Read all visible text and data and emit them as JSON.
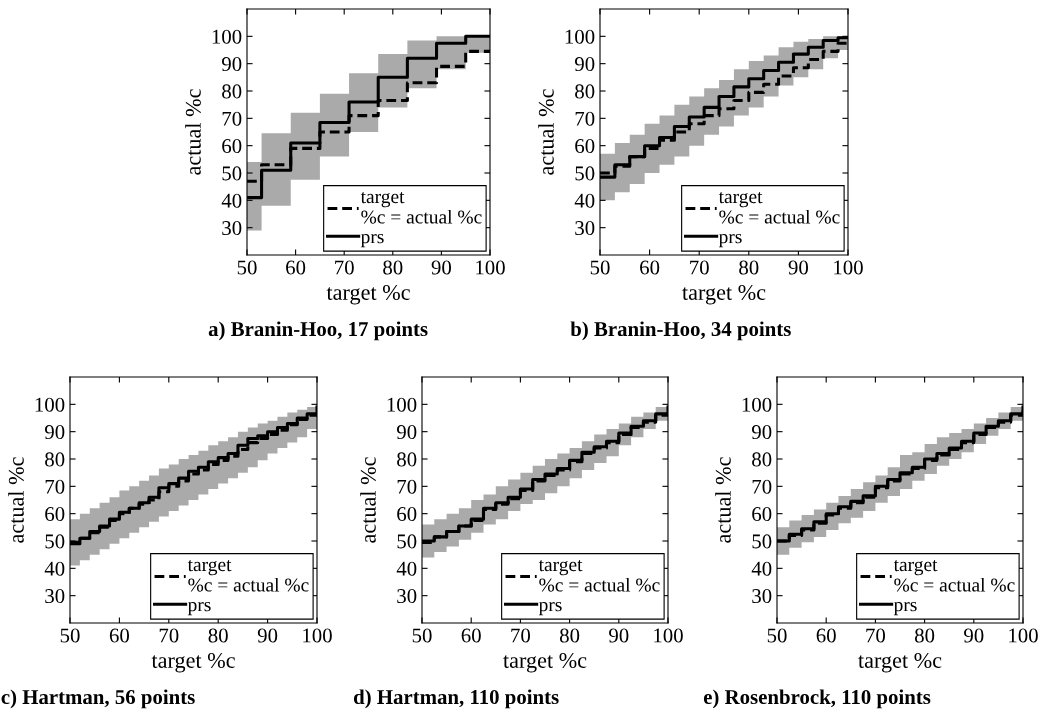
{
  "chart_data": [
    {
      "type": "step",
      "title": "a) Branin-Hoo, 17 points",
      "xlabel": "target %c",
      "ylabel": "actual %c",
      "xlim": [
        50,
        100
      ],
      "ylim": [
        20,
        110
      ],
      "xticks": [
        50,
        60,
        70,
        80,
        90,
        100
      ],
      "yticks": [
        30,
        40,
        50,
        60,
        70,
        80,
        90,
        100
      ],
      "legend": "bottom right",
      "grid": false,
      "x": [
        50,
        53,
        59,
        65,
        71,
        77,
        83,
        89,
        95,
        100
      ],
      "series": [
        {
          "name": "target\n%c = actual %c",
          "color": "#000000",
          "line_style": "dashed",
          "values": [
            47,
            53,
            59,
            65,
            71,
            76.5,
            83,
            89,
            94.5,
            94.5
          ]
        },
        {
          "name": "prs",
          "color": "#000000",
          "line_style": "solid",
          "values": [
            41,
            51,
            61,
            68.5,
            76,
            85,
            92,
            97.5,
            100,
            100
          ],
          "lower": [
            29,
            38,
            47.5,
            56,
            65,
            74,
            81,
            88,
            94,
            94
          ],
          "upper": [
            54,
            64.5,
            72,
            79,
            86.5,
            93.5,
            98.5,
            100,
            100,
            100
          ]
        }
      ]
    },
    {
      "type": "step",
      "title": "b) Branin-Hoo, 34 points",
      "xlabel": "target %c",
      "ylabel": "actual %c",
      "xlim": [
        50,
        100
      ],
      "ylim": [
        20,
        110
      ],
      "xticks": [
        50,
        60,
        70,
        80,
        90,
        100
      ],
      "yticks": [
        30,
        40,
        50,
        60,
        70,
        80,
        90,
        100
      ],
      "legend": "bottom right",
      "grid": false,
      "x": [
        50,
        53,
        56,
        59,
        62,
        65,
        68,
        71,
        74,
        77,
        80,
        83,
        86,
        89,
        92,
        95,
        98,
        100
      ],
      "series": [
        {
          "name": "target\n%c = actual %c",
          "color": "#000000",
          "line_style": "dashed",
          "values": [
            50,
            52.5,
            56,
            59,
            62,
            65,
            68,
            71,
            73.5,
            76.5,
            79.5,
            82.5,
            85.5,
            88.5,
            91.5,
            94.5,
            97.5,
            97.5
          ]
        },
        {
          "name": "prs",
          "color": "#000000",
          "line_style": "solid",
          "values": [
            48.5,
            53,
            56,
            60,
            63,
            67,
            70.5,
            74,
            78,
            81.5,
            84.5,
            87.5,
            90.5,
            93.5,
            96,
            98.5,
            99.5,
            99.5
          ],
          "lower": [
            40,
            43,
            46,
            50,
            53,
            56,
            60,
            64,
            67,
            71,
            74,
            78,
            82,
            85,
            88,
            92,
            95,
            95
          ],
          "upper": [
            57,
            61,
            64,
            68,
            71,
            75,
            78,
            81,
            84,
            88,
            91,
            93,
            96,
            98,
            99,
            100,
            100,
            100
          ]
        }
      ]
    },
    {
      "type": "step",
      "title": "c) Hartman, 56 points",
      "xlabel": "target %c",
      "ylabel": "actual %c",
      "xlim": [
        50,
        100
      ],
      "ylim": [
        20,
        110
      ],
      "xticks": [
        50,
        60,
        70,
        80,
        90,
        100
      ],
      "yticks": [
        30,
        40,
        50,
        60,
        70,
        80,
        90,
        100
      ],
      "legend": "bottom right",
      "grid": false,
      "x": [
        50,
        52,
        54,
        56,
        58,
        60,
        62,
        64,
        66,
        68,
        70,
        72,
        74,
        76,
        78,
        80,
        82,
        84,
        86,
        88,
        90,
        92,
        94,
        96,
        98,
        100
      ],
      "series": [
        {
          "name": "target\n%c = actual %c",
          "color": "#000000",
          "line_style": "dashed",
          "values": [
            49.5,
            51,
            53,
            55,
            57.5,
            60,
            62,
            63.5,
            65,
            68,
            70,
            72,
            74.5,
            76,
            78,
            79.5,
            81,
            83.5,
            86,
            87.5,
            89,
            90.5,
            92.5,
            94.5,
            96,
            98.5
          ]
        },
        {
          "name": "prs",
          "color": "#000000",
          "line_style": "solid",
          "values": [
            49,
            51,
            53.5,
            55.5,
            58,
            60.5,
            62,
            64,
            66,
            69.5,
            71,
            73,
            75.5,
            77,
            79,
            80.5,
            82,
            85,
            87.5,
            88.5,
            90,
            91.5,
            93,
            95,
            96.5,
            99
          ],
          "lower": [
            41,
            43,
            45,
            47,
            49,
            51,
            53,
            55,
            57,
            59,
            61,
            63,
            65,
            67,
            69,
            71,
            73,
            75,
            77,
            79.5,
            82,
            84,
            86,
            88,
            91,
            93
          ],
          "upper": [
            58,
            60,
            62,
            64,
            66,
            68.5,
            70,
            72,
            74,
            76.5,
            78,
            80,
            81.5,
            83,
            85,
            86.5,
            88,
            90,
            91.5,
            93,
            94,
            95.5,
            97,
            98,
            99,
            100
          ]
        }
      ]
    },
    {
      "type": "step",
      "title": "d) Hartman, 110 points",
      "xlabel": "target %c",
      "ylabel": "actual %c",
      "xlim": [
        50,
        100
      ],
      "ylim": [
        20,
        110
      ],
      "xticks": [
        50,
        60,
        70,
        80,
        90,
        100
      ],
      "yticks": [
        30,
        40,
        50,
        60,
        70,
        80,
        90,
        100
      ],
      "legend": "bottom right",
      "grid": false,
      "x": [
        50,
        52.5,
        55,
        57.5,
        60,
        62.5,
        65,
        67.5,
        70,
        72.5,
        75,
        77.5,
        80,
        82.5,
        85,
        87.5,
        90,
        92.5,
        95,
        97.5,
        100
      ],
      "series": [
        {
          "name": "target\n%c = actual %c",
          "color": "#000000",
          "line_style": "dashed",
          "values": [
            49.5,
            51.5,
            53.5,
            55.5,
            57.5,
            61.5,
            63.5,
            65.5,
            68.5,
            72,
            74,
            76,
            79,
            82,
            84,
            86,
            89,
            91.5,
            93.5,
            96,
            98.5
          ]
        },
        {
          "name": "prs",
          "color": "#000000",
          "line_style": "solid",
          "values": [
            50,
            51.5,
            53.5,
            55.5,
            58,
            62,
            64,
            66,
            69,
            72.5,
            74.5,
            76.5,
            79.5,
            82.5,
            84.5,
            86.5,
            89.5,
            92,
            94,
            96.5,
            99
          ],
          "lower": [
            44,
            46,
            48,
            50.5,
            53,
            56,
            58,
            61,
            63.5,
            65,
            67.5,
            70,
            73,
            76,
            78.5,
            81,
            85,
            88,
            91,
            94,
            96
          ],
          "upper": [
            56,
            58,
            60,
            62,
            65,
            67,
            70,
            72.5,
            75,
            77.5,
            80,
            82,
            84,
            86.5,
            89,
            91,
            93,
            95.5,
            97,
            99,
            100
          ]
        }
      ]
    },
    {
      "type": "step",
      "title": "e) Rosenbrock, 110 points",
      "xlabel": "target %c",
      "ylabel": "actual %c",
      "xlim": [
        50,
        100
      ],
      "ylim": [
        20,
        110
      ],
      "xticks": [
        50,
        60,
        70,
        80,
        90,
        100
      ],
      "yticks": [
        30,
        40,
        50,
        60,
        70,
        80,
        90,
        100
      ],
      "legend": "bottom right",
      "grid": false,
      "x": [
        50,
        52.5,
        55,
        57.5,
        60,
        62.5,
        65,
        67.5,
        70,
        72.5,
        75,
        77.5,
        80,
        82.5,
        85,
        87.5,
        90,
        92.5,
        95,
        97.5,
        100
      ],
      "series": [
        {
          "name": "target\n%c = actual %c",
          "color": "#000000",
          "line_style": "dashed",
          "values": [
            50,
            52,
            54,
            56.5,
            59.5,
            62,
            64,
            66,
            69.5,
            72,
            74.5,
            76.5,
            79.5,
            81.5,
            83.5,
            86,
            89,
            91.5,
            93.5,
            96,
            98.5
          ]
        },
        {
          "name": "prs",
          "color": "#000000",
          "line_style": "solid",
          "values": [
            50,
            52.5,
            54.5,
            57,
            60,
            62.5,
            64.5,
            66.5,
            70,
            72.5,
            75,
            77,
            80,
            82,
            84,
            86.5,
            89.5,
            92,
            94,
            96.5,
            99
          ],
          "lower": [
            45,
            47.5,
            49.5,
            51.5,
            54,
            56.5,
            58.5,
            61,
            64,
            66.5,
            69,
            72,
            74.5,
            77.5,
            80,
            82.5,
            85.5,
            88.5,
            91,
            94,
            95.5
          ],
          "upper": [
            55,
            57.5,
            59.5,
            61.5,
            64,
            66.5,
            69,
            71.5,
            74,
            77,
            81.5,
            82.5,
            85.5,
            88,
            89.5,
            91,
            93,
            95,
            97,
            99,
            100
          ]
        }
      ]
    }
  ]
}
